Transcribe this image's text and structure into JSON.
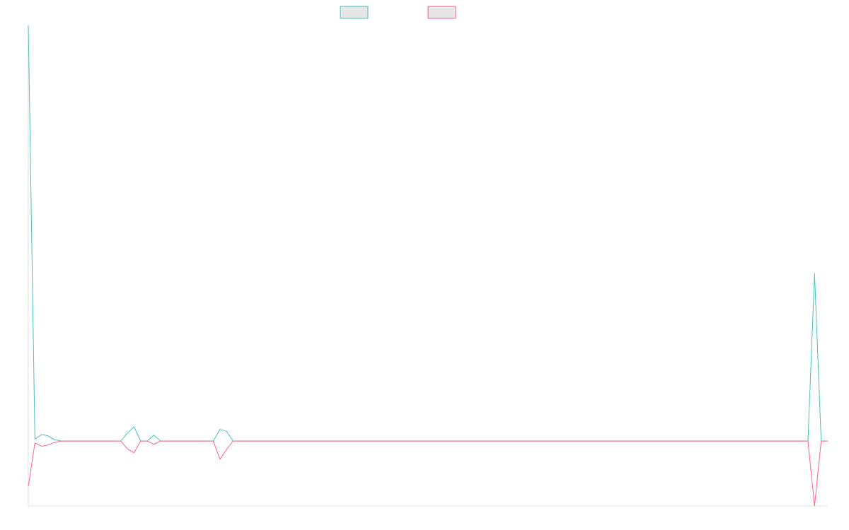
{
  "chart_data": {
    "type": "line",
    "legend_position": "top-center",
    "grid": false,
    "colors": {
      "series_a": "#4bc0c0",
      "series_b": "#ff6384",
      "legend_fill": "#e6e6e6",
      "axis": "#e0e0e0"
    },
    "ylim": [
      -100,
      640
    ],
    "series": [
      {
        "name": "",
        "color_key": "series_a",
        "values": [
          640,
          3,
          10,
          8,
          2,
          0,
          0,
          0,
          0,
          0,
          0,
          0,
          0,
          0,
          0,
          12,
          22,
          0,
          0,
          9,
          0,
          0,
          0,
          0,
          0,
          0,
          0,
          0,
          0,
          18,
          15,
          0,
          0,
          0,
          0,
          0,
          0,
          0,
          0,
          0,
          0,
          0,
          0,
          0,
          0,
          0,
          0,
          0,
          0,
          0,
          0,
          0,
          0,
          0,
          0,
          0,
          0,
          0,
          0,
          0,
          0,
          0,
          0,
          0,
          0,
          0,
          0,
          0,
          0,
          0,
          0,
          0,
          0,
          0,
          0,
          0,
          0,
          0,
          0,
          0,
          0,
          0,
          0,
          0,
          0,
          0,
          0,
          0,
          0,
          0,
          0,
          0,
          0,
          0,
          0,
          0,
          0,
          0,
          0,
          0,
          0,
          0,
          0,
          0,
          0,
          0,
          0,
          0,
          0,
          0,
          0,
          0,
          0,
          0,
          0,
          0,
          0,
          0,
          0,
          258,
          0,
          0
        ]
      },
      {
        "name": "",
        "color_key": "series_b",
        "values": [
          -70,
          -3,
          -8,
          -6,
          -2,
          0,
          0,
          0,
          0,
          0,
          0,
          0,
          0,
          0,
          0,
          -12,
          -18,
          0,
          0,
          -5,
          0,
          0,
          0,
          0,
          0,
          0,
          0,
          0,
          0,
          -28,
          -13,
          0,
          0,
          0,
          0,
          0,
          0,
          0,
          0,
          0,
          0,
          0,
          0,
          0,
          0,
          0,
          0,
          0,
          0,
          0,
          0,
          0,
          0,
          0,
          0,
          0,
          0,
          0,
          0,
          0,
          0,
          0,
          0,
          0,
          0,
          0,
          0,
          0,
          0,
          0,
          0,
          0,
          0,
          0,
          0,
          0,
          0,
          0,
          0,
          0,
          0,
          0,
          0,
          0,
          0,
          0,
          0,
          0,
          0,
          0,
          0,
          0,
          0,
          0,
          0,
          0,
          0,
          0,
          0,
          0,
          0,
          0,
          0,
          0,
          0,
          0,
          0,
          0,
          0,
          0,
          0,
          0,
          0,
          0,
          0,
          0,
          0,
          0,
          0,
          -100,
          0,
          0
        ]
      }
    ]
  }
}
